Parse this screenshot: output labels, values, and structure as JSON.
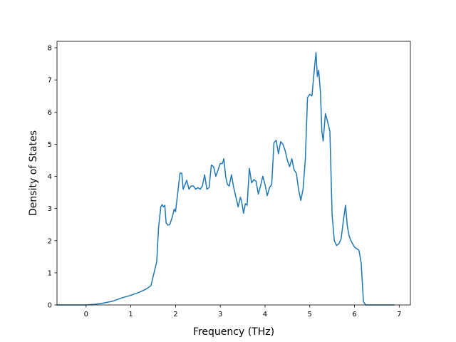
{
  "chart_data": {
    "type": "line",
    "title": "",
    "xlabel": "Frequency (THz)",
    "ylabel": "Density of States",
    "xlim": [
      -0.65,
      7.25
    ],
    "ylim": [
      0,
      8.2
    ],
    "xticks": [
      0,
      1,
      2,
      3,
      4,
      5,
      6,
      7
    ],
    "yticks": [
      0,
      1,
      2,
      3,
      4,
      5,
      6,
      7,
      8
    ],
    "grid": false,
    "legend": "none",
    "series": [
      {
        "color": "#1f77b4",
        "x": [
          -0.65,
          -0.4,
          -0.2,
          0.0,
          0.2,
          0.4,
          0.6,
          0.8,
          1.0,
          1.2,
          1.35,
          1.45,
          1.58,
          1.62,
          1.67,
          1.7,
          1.73,
          1.76,
          1.79,
          1.83,
          1.87,
          1.92,
          1.97,
          2.0,
          2.05,
          2.1,
          2.14,
          2.17,
          2.2,
          2.25,
          2.3,
          2.35,
          2.4,
          2.45,
          2.5,
          2.55,
          2.6,
          2.65,
          2.7,
          2.75,
          2.8,
          2.85,
          2.9,
          2.95,
          3.0,
          3.05,
          3.08,
          3.12,
          3.16,
          3.2,
          3.25,
          3.3,
          3.35,
          3.4,
          3.45,
          3.48,
          3.52,
          3.56,
          3.6,
          3.65,
          3.7,
          3.75,
          3.8,
          3.85,
          3.9,
          3.95,
          4.0,
          4.05,
          4.1,
          4.15,
          4.2,
          4.25,
          4.3,
          4.35,
          4.4,
          4.45,
          4.5,
          4.55,
          4.6,
          4.65,
          4.7,
          4.75,
          4.8,
          4.85,
          4.9,
          4.95,
          5.0,
          5.05,
          5.1,
          5.14,
          5.17,
          5.2,
          5.24,
          5.27,
          5.3,
          5.35,
          5.4,
          5.45,
          5.5,
          5.55,
          5.6,
          5.65,
          5.7,
          5.75,
          5.8,
          5.84,
          5.88,
          5.92,
          5.96,
          6.0,
          6.05,
          6.1,
          6.15,
          6.2,
          6.25,
          6.3,
          6.5,
          6.7,
          6.88
        ],
        "y": [
          0.0,
          0.0,
          0.0,
          0.0,
          0.02,
          0.06,
          0.12,
          0.22,
          0.3,
          0.4,
          0.5,
          0.6,
          1.35,
          2.4,
          3.05,
          3.12,
          3.05,
          3.1,
          2.55,
          2.48,
          2.5,
          2.7,
          2.98,
          2.9,
          3.5,
          4.1,
          4.1,
          3.6,
          3.7,
          3.88,
          3.6,
          3.7,
          3.7,
          3.6,
          3.65,
          3.6,
          3.7,
          4.05,
          3.6,
          3.65,
          4.35,
          4.3,
          4.0,
          4.2,
          4.4,
          4.4,
          4.55,
          4.0,
          3.75,
          3.7,
          4.05,
          3.65,
          3.35,
          3.05,
          3.35,
          3.2,
          2.85,
          3.15,
          3.1,
          4.25,
          3.8,
          3.9,
          3.85,
          3.45,
          3.7,
          4.0,
          3.75,
          3.4,
          3.65,
          3.75,
          5.05,
          5.12,
          4.7,
          5.08,
          5.0,
          4.8,
          4.5,
          4.3,
          4.55,
          4.2,
          4.1,
          3.6,
          3.25,
          3.6,
          4.5,
          6.45,
          6.55,
          6.5,
          7.3,
          7.85,
          7.1,
          7.3,
          6.6,
          5.4,
          5.1,
          5.95,
          5.7,
          5.4,
          2.8,
          2.0,
          1.85,
          1.9,
          2.05,
          2.6,
          3.1,
          2.45,
          2.15,
          2.0,
          1.9,
          1.8,
          1.75,
          1.7,
          1.3,
          0.1,
          0.0,
          0.0,
          0.0,
          0.0,
          0.0
        ]
      }
    ]
  }
}
